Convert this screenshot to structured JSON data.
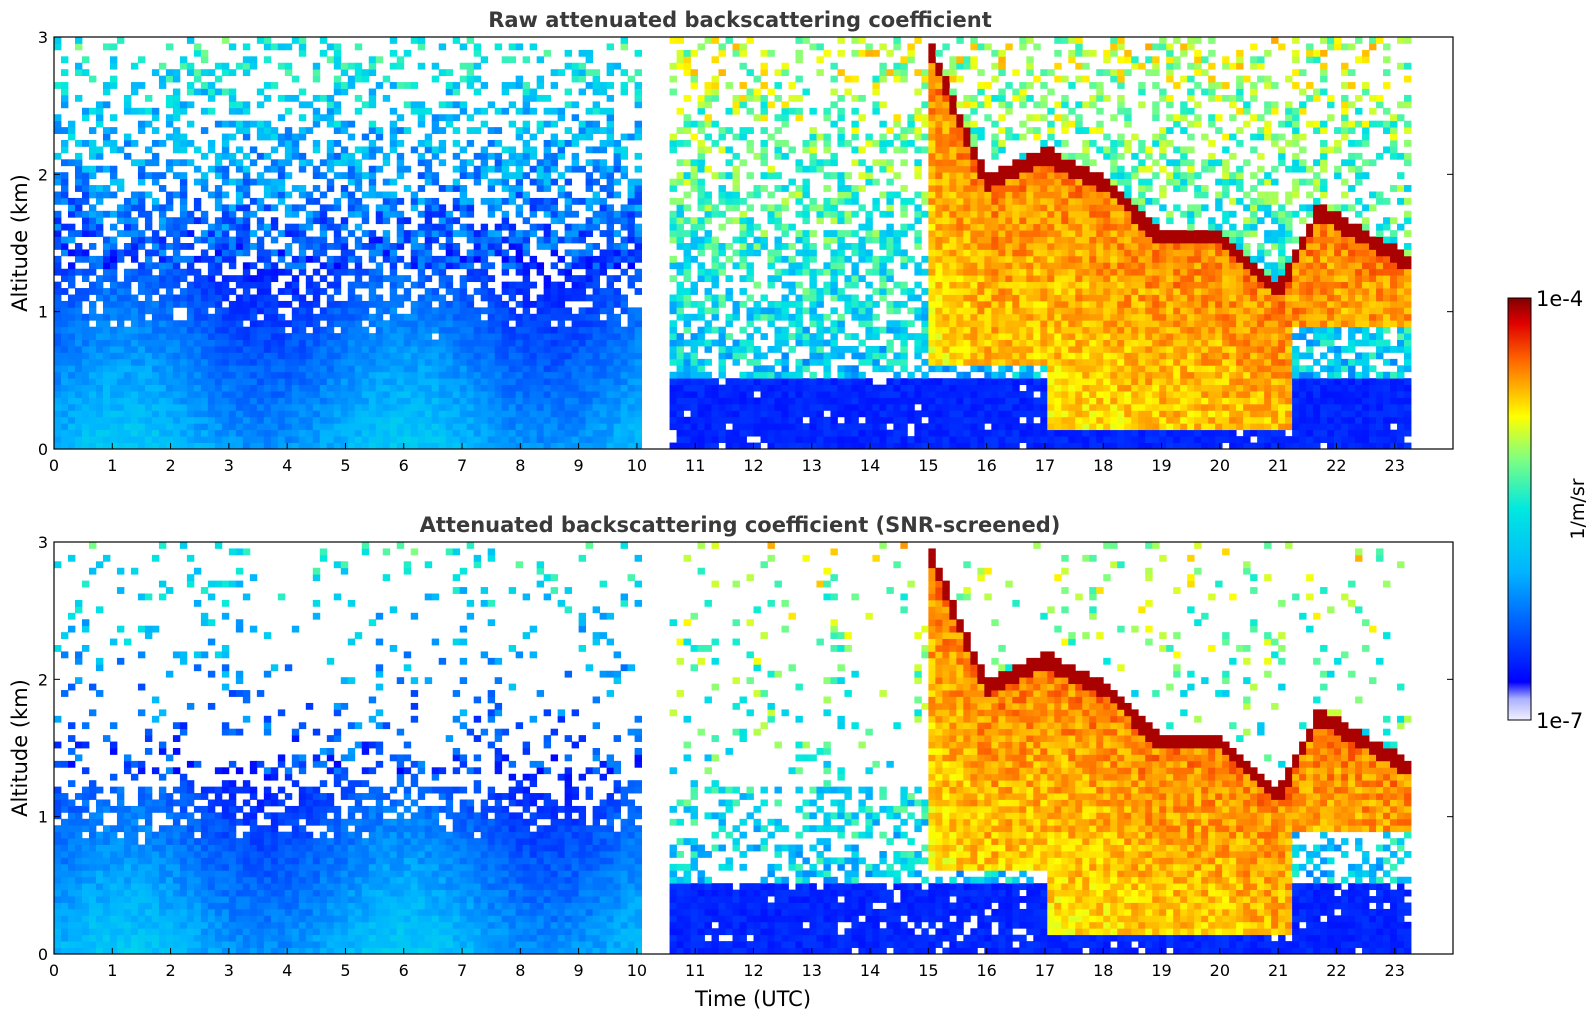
{
  "chart_data": [
    {
      "type": "heatmap",
      "title": "Raw attenuated backscattering coefficient",
      "xlabel": "",
      "ylabel": "Altitude (km)",
      "xlim": [
        0,
        24
      ],
      "ylim": [
        0,
        3
      ],
      "xticks": [
        "0",
        "1",
        "2",
        "3",
        "4",
        "5",
        "6",
        "7",
        "8",
        "9",
        "10",
        "11",
        "12",
        "13",
        "14",
        "15",
        "16",
        "17",
        "18",
        "19",
        "20",
        "21",
        "22",
        "23"
      ],
      "yticks": [
        "0",
        "1",
        "2",
        "3"
      ],
      "data_gap": [
        10.05,
        10.5
      ],
      "data_end": 23.3,
      "features": {
        "aerosol_layer_top_km": 1.3,
        "cloud_onset_time": 15.0,
        "cloud_top_km_trace": [
          [
            15.0,
            3.0
          ],
          [
            15.5,
            2.5
          ],
          [
            16.0,
            2.0
          ],
          [
            17.0,
            2.2
          ],
          [
            18.0,
            2.0
          ],
          [
            19.0,
            1.6
          ],
          [
            20.0,
            1.6
          ],
          [
            21.0,
            1.2
          ],
          [
            21.7,
            1.8
          ],
          [
            22.5,
            1.6
          ],
          [
            23.3,
            1.4
          ]
        ],
        "precip_base_km": 0.15
      }
    },
    {
      "type": "heatmap",
      "title": "Attenuated backscattering coefficient (SNR-screened)",
      "xlabel": "Time (UTC)",
      "ylabel": "Altitude (km)",
      "xlim": [
        0,
        24
      ],
      "ylim": [
        0,
        3
      ],
      "xticks": [
        "0",
        "1",
        "2",
        "3",
        "4",
        "5",
        "6",
        "7",
        "8",
        "9",
        "10",
        "11",
        "12",
        "13",
        "14",
        "15",
        "16",
        "17",
        "18",
        "19",
        "20",
        "21",
        "22",
        "23"
      ],
      "yticks": [
        "0",
        "1",
        "2",
        "3"
      ],
      "data_gap": [
        10.05,
        10.5
      ],
      "data_end": 23.3,
      "screen": "snr"
    }
  ],
  "colorbar": {
    "max_label": "1e-4",
    "min_label": "1e-7",
    "unit": "1/m/sr",
    "scale": "log",
    "colormap": "jet"
  }
}
